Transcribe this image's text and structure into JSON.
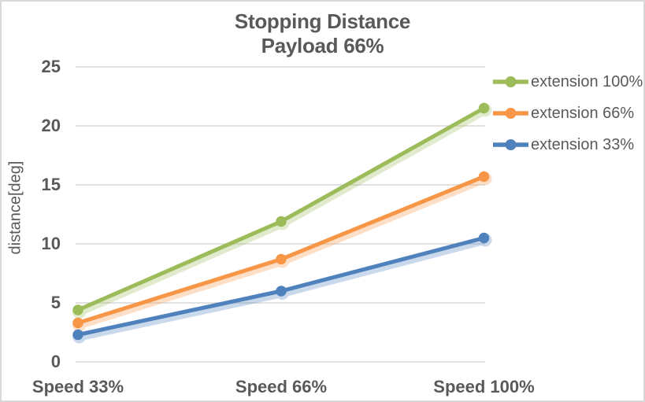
{
  "chart_data": {
    "type": "line",
    "title": "Stopping Distance",
    "subtitle": "Payload 66%",
    "ylabel": "distance[deg]",
    "xlabel": "",
    "categories": [
      "Speed 33%",
      "Speed 66%",
      "Speed 100%"
    ],
    "series": [
      {
        "name": "extension 100%",
        "color": "#9CBB59",
        "values": [
          4.4,
          11.9,
          21.5
        ]
      },
      {
        "name": "extension 66%",
        "color": "#F79646",
        "values": [
          3.3,
          8.7,
          15.7
        ]
      },
      {
        "name": "extension 33%",
        "color": "#4F81BD",
        "values": [
          2.3,
          6.0,
          10.5
        ]
      }
    ],
    "ylim": [
      0,
      25
    ],
    "yticks": [
      0,
      5,
      10,
      15,
      20,
      25
    ],
    "grid": true,
    "legend_position": "right",
    "marker": "circle"
  },
  "colors": {
    "text": "#595959",
    "gridline": "#D9D9D9",
    "border": "#D8D8D8",
    "background": "#FFFFFF"
  }
}
